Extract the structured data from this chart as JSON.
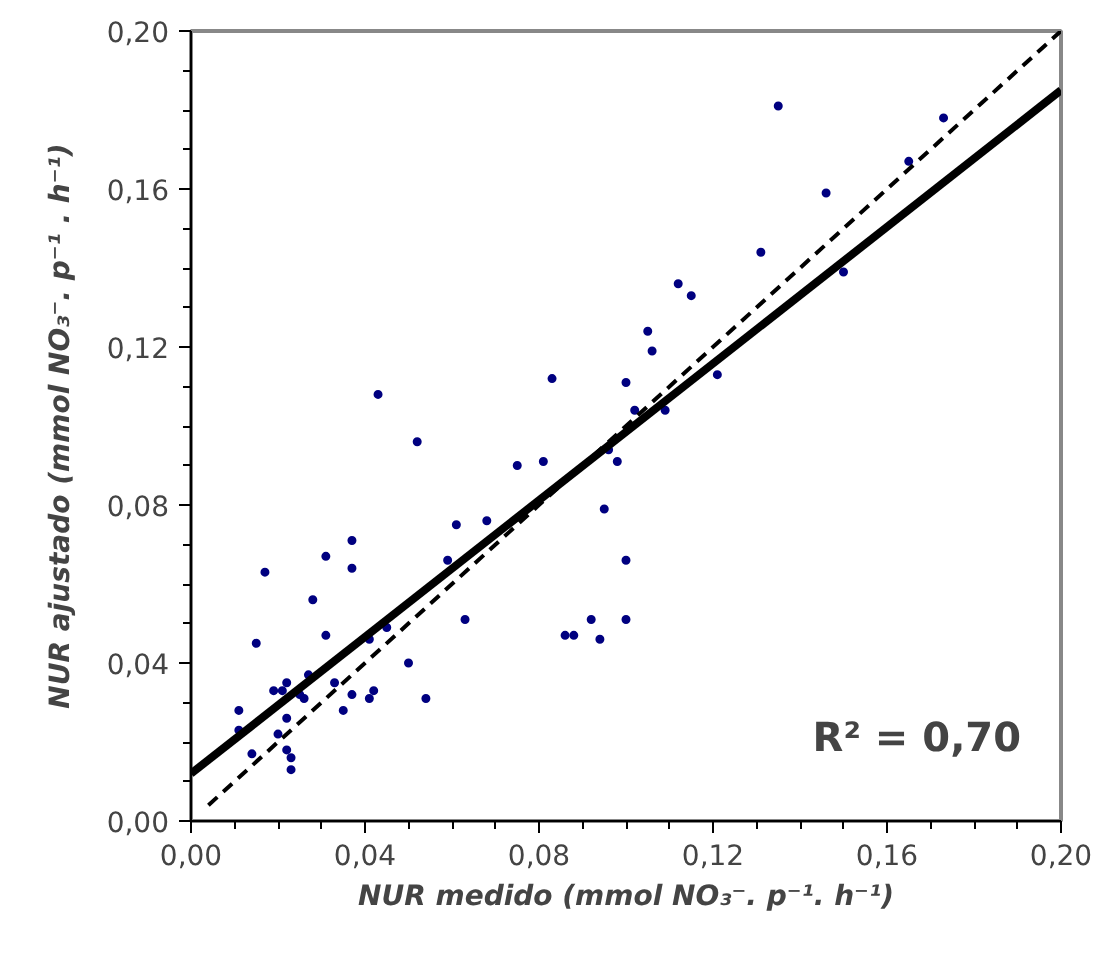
{
  "chart_data": {
    "type": "scatter",
    "xlabel": "NUR medido (mmol NO₃⁻. p⁻¹. h⁻¹)",
    "ylabel": "NUR ajustado (mmol NO₃⁻. p⁻¹ . h⁻¹)",
    "annotations": [
      "R² = 0,70"
    ],
    "xlim": [
      0,
      0.2
    ],
    "ylim": [
      0,
      0.2
    ],
    "xticks": [
      {
        "value": 0,
        "label": "0,00"
      },
      {
        "value": 0.04,
        "label": "0,04"
      },
      {
        "value": 0.08,
        "label": "0,08"
      },
      {
        "value": 0.12,
        "label": "0,12"
      },
      {
        "value": 0.16,
        "label": "0,16"
      },
      {
        "value": 0.2,
        "label": "0,20"
      }
    ],
    "yticks": [
      {
        "value": 0,
        "label": "0,00"
      },
      {
        "value": 0.04,
        "label": "0,04"
      },
      {
        "value": 0.08,
        "label": "0,08"
      },
      {
        "value": 0.12,
        "label": "0,12"
      },
      {
        "value": 0.16,
        "label": "0,16"
      },
      {
        "value": 0.2,
        "label": "0,20"
      }
    ],
    "grid": false,
    "series": [
      {
        "marker": "circle",
        "color": "#000080",
        "x": [
          0.135,
          0.173,
          0.165,
          0.146,
          0.131,
          0.112,
          0.115,
          0.15,
          0.105,
          0.106,
          0.1,
          0.102,
          0.109,
          0.121,
          0.043,
          0.083,
          0.052,
          0.075,
          0.081,
          0.096,
          0.098,
          0.095,
          0.1,
          0.1,
          0.092,
          0.086,
          0.088,
          0.094,
          0.061,
          0.068,
          0.059,
          0.063,
          0.037,
          0.037,
          0.031,
          0.017,
          0.028,
          0.031,
          0.015,
          0.045,
          0.041,
          0.05,
          0.054,
          0.033,
          0.037,
          0.042,
          0.041,
          0.035,
          0.027,
          0.022,
          0.019,
          0.021,
          0.025,
          0.026,
          0.022,
          0.02,
          0.011,
          0.011,
          0.014,
          0.022,
          0.023,
          0.023
        ],
        "values": [
          0.181,
          0.178,
          0.167,
          0.159,
          0.144,
          0.136,
          0.133,
          0.139,
          0.124,
          0.119,
          0.111,
          0.104,
          0.104,
          0.113,
          0.108,
          0.112,
          0.096,
          0.09,
          0.091,
          0.094,
          0.091,
          0.079,
          0.066,
          0.051,
          0.051,
          0.047,
          0.047,
          0.046,
          0.075,
          0.076,
          0.066,
          0.051,
          0.071,
          0.064,
          0.067,
          0.063,
          0.056,
          0.047,
          0.045,
          0.049,
          0.046,
          0.04,
          0.031,
          0.035,
          0.032,
          0.033,
          0.031,
          0.028,
          0.037,
          0.035,
          0.033,
          0.033,
          0.032,
          0.031,
          0.026,
          0.022,
          0.028,
          0.023,
          0.017,
          0.018,
          0.016,
          0.013
        ]
      },
      {
        "type": "line",
        "color": "#000000",
        "line_style": "solid",
        "x": [
          0,
          0.2
        ],
        "values": [
          0.012,
          0.185
        ]
      },
      {
        "type": "line",
        "color": "#000000",
        "line_style": "dashed",
        "x": [
          0.004,
          0.2
        ],
        "values": [
          0.004,
          0.2
        ]
      }
    ]
  }
}
